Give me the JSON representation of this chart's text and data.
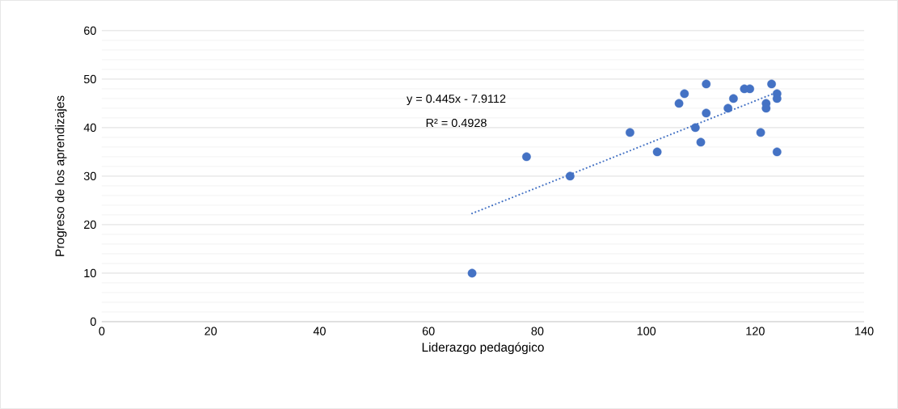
{
  "chart_data": {
    "type": "scatter",
    "xlabel": "Liderazgo pedagógico",
    "ylabel": "Progreso de los aprendizajes",
    "annotations": [
      "y = 0.445x - 7.9112",
      "R² = 0.4928"
    ],
    "xlim": [
      0,
      140
    ],
    "xticks": [
      0,
      20,
      40,
      60,
      80,
      100,
      120,
      140
    ],
    "ylim": [
      0,
      60
    ],
    "yticks": [
      0,
      10,
      20,
      30,
      40,
      50,
      60
    ],
    "grid": "y",
    "legend": false,
    "series": [
      {
        "type": "scatter",
        "marker": "circle",
        "color": "#4472c4",
        "x": [
          68,
          78,
          86,
          97,
          102,
          106,
          107,
          111,
          111,
          109,
          110,
          115,
          116,
          118,
          119,
          121,
          122,
          122,
          123,
          124,
          124,
          124
        ],
        "values": [
          10,
          34,
          30,
          39,
          35,
          45,
          47,
          49,
          43,
          40,
          37,
          44,
          46,
          48,
          48,
          39,
          45,
          44,
          49,
          47,
          46,
          35
        ]
      },
      {
        "type": "line",
        "color": "#4472c4",
        "line_style": "dotted",
        "marker": "none",
        "x": [
          68,
          124
        ],
        "values": [
          22.3,
          47.3
        ]
      }
    ]
  }
}
